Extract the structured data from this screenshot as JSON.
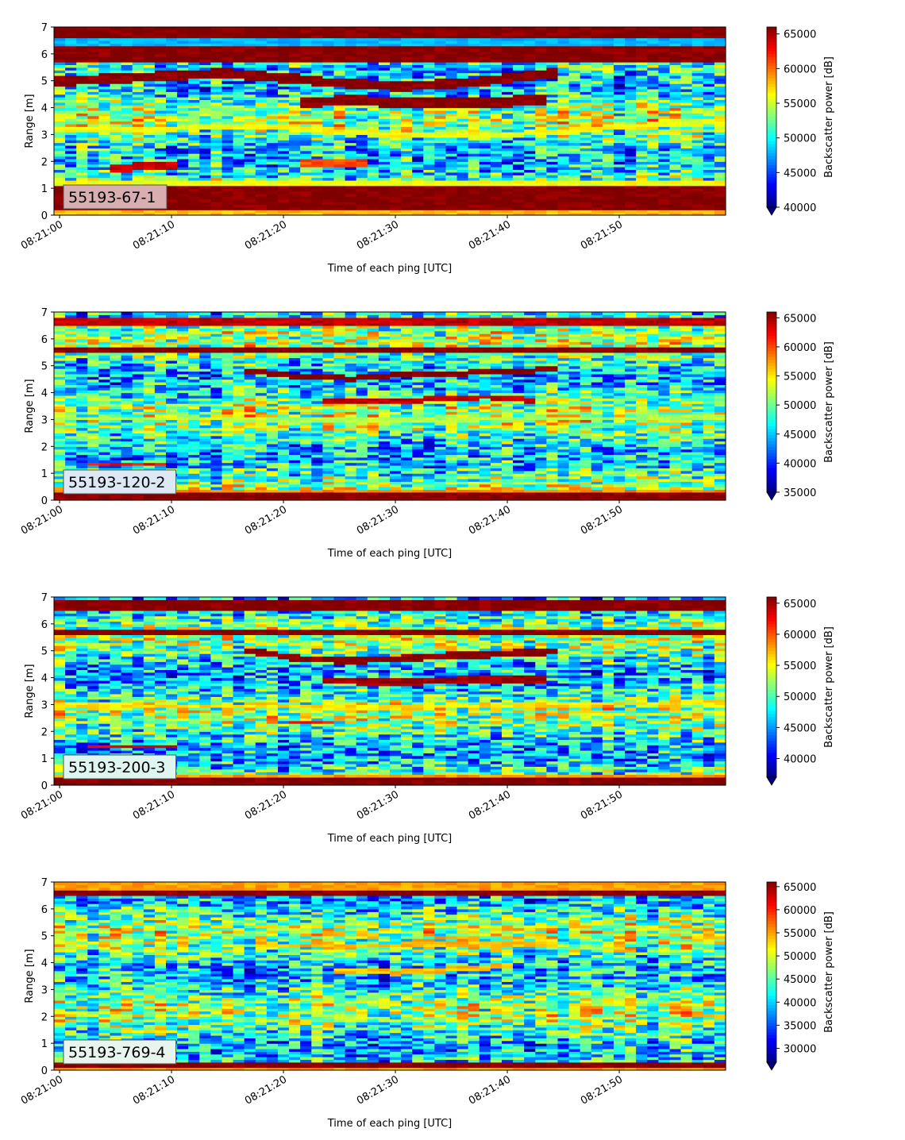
{
  "chart_data": [
    {
      "type": "heatmap",
      "panel_label": "55193-67-1",
      "label_box_color": "#d9aeb0",
      "xlabel": "Time of each ping [UTC]",
      "ylabel": "Range [m]",
      "xticks": [
        "08:21:00",
        "08:21:10",
        "08:21:20",
        "08:21:30",
        "08:21:40",
        "08:21:50"
      ],
      "x_range_seconds": [
        -0.5,
        59.5
      ],
      "ylim": [
        0,
        7
      ],
      "yticks": [
        0,
        1,
        2,
        3,
        4,
        5,
        6,
        7
      ],
      "colorbar": {
        "label": "Backscatter power [dB]",
        "vmin": 40000,
        "vmax": 66000,
        "ticks": [
          40000,
          45000,
          50000,
          55000,
          60000,
          65000
        ],
        "colormap": "jet",
        "extend": "min"
      },
      "layers": [
        {
          "range": [
            0.0,
            0.25
          ],
          "value": 58000
        },
        {
          "range": [
            0.25,
            1.15
          ],
          "value": 66000
        },
        {
          "range": [
            1.15,
            1.35
          ],
          "value": 56000
        },
        {
          "range": [
            5.7,
            6.3
          ],
          "value": 66000
        },
        {
          "range": [
            6.3,
            6.6
          ],
          "value": 48000
        },
        {
          "range": [
            6.6,
            7.0
          ],
          "value": 66000
        }
      ],
      "features": [
        {
          "t": [
            0,
            15,
            23,
            30,
            38,
            44
          ],
          "r": [
            5.0,
            5.3,
            5.0,
            4.8,
            5.0,
            5.3
          ],
          "value": 66000,
          "thickness": 0.35
        },
        {
          "t": [
            22,
            26,
            30,
            38,
            43
          ],
          "r": [
            4.2,
            4.3,
            4.2,
            4.2,
            4.3
          ],
          "value": 66000,
          "thickness": 0.4
        },
        {
          "t": [
            0,
            20,
            30,
            40,
            50,
            59
          ],
          "r": [
            3.2,
            3.3,
            3.0,
            3.0,
            3.3,
            3.5
          ],
          "value": 56000,
          "thickness": 0.2
        },
        {
          "t": [
            5,
            8,
            10
          ],
          "r": [
            1.75,
            1.85,
            1.85
          ],
          "value": 64000,
          "thickness": 0.3
        },
        {
          "t": [
            22,
            27
          ],
          "r": [
            1.95,
            1.95
          ],
          "value": 61000,
          "thickness": 0.25
        }
      ]
    },
    {
      "type": "heatmap",
      "panel_label": "55193-120-2",
      "label_box_color": "#dde8f5",
      "xlabel": "Time of each ping [UTC]",
      "ylabel": "Range [m]",
      "xticks": [
        "08:21:00",
        "08:21:10",
        "08:21:20",
        "08:21:30",
        "08:21:40",
        "08:21:50"
      ],
      "x_range_seconds": [
        -0.5,
        59.5
      ],
      "ylim": [
        0,
        7
      ],
      "yticks": [
        0,
        1,
        2,
        3,
        4,
        5,
        6,
        7
      ],
      "colorbar": {
        "label": "Backscatter power [dB]",
        "vmin": 35000,
        "vmax": 66000,
        "ticks": [
          35000,
          40000,
          45000,
          50000,
          55000,
          60000,
          65000
        ],
        "colormap": "jet",
        "extend": "min"
      },
      "layers": [
        {
          "range": [
            0.0,
            0.3
          ],
          "value": 66000
        },
        {
          "range": [
            0.3,
            0.4
          ],
          "value": 58000
        },
        {
          "range": [
            5.5,
            5.7
          ],
          "value": 66000
        },
        {
          "range": [
            6.5,
            6.8
          ],
          "value": 64000
        }
      ],
      "features": [
        {
          "t": [
            17,
            22,
            26,
            32,
            40,
            44
          ],
          "r": [
            4.8,
            4.6,
            4.55,
            4.7,
            4.8,
            4.9
          ],
          "value": 66000,
          "thickness": 0.2
        },
        {
          "t": [
            24,
            30,
            38,
            42
          ],
          "r": [
            3.7,
            3.7,
            3.85,
            3.75
          ],
          "value": 64000,
          "thickness": 0.2
        },
        {
          "t": [
            0,
            30,
            59
          ],
          "r": [
            3.05,
            3.0,
            3.1
          ],
          "value": 52000,
          "thickness": 0.15
        },
        {
          "t": [
            3,
            9
          ],
          "r": [
            1.35,
            1.35
          ],
          "value": 62000,
          "thickness": 0.12
        }
      ]
    },
    {
      "type": "heatmap",
      "panel_label": "55193-200-3",
      "label_box_color": "#dff5f0",
      "xlabel": "Time of each ping [UTC]",
      "ylabel": "Range [m]",
      "xticks": [
        "08:21:00",
        "08:21:10",
        "08:21:20",
        "08:21:30",
        "08:21:40",
        "08:21:50"
      ],
      "x_range_seconds": [
        -0.5,
        59.5
      ],
      "ylim": [
        0,
        7
      ],
      "yticks": [
        0,
        1,
        2,
        3,
        4,
        5,
        6,
        7
      ],
      "colorbar": {
        "label": "Backscatter power [dB]",
        "vmin": 37000,
        "vmax": 66000,
        "ticks": [
          40000,
          45000,
          50000,
          55000,
          60000,
          65000
        ],
        "colormap": "jet",
        "extend": "min"
      },
      "layers": [
        {
          "range": [
            0.0,
            0.3
          ],
          "value": 66000
        },
        {
          "range": [
            0.3,
            0.45
          ],
          "value": 58000
        },
        {
          "range": [
            5.6,
            5.85
          ],
          "value": 66000
        },
        {
          "range": [
            6.5,
            6.9
          ],
          "value": 66000
        }
      ],
      "features": [
        {
          "t": [
            17,
            22,
            27,
            33,
            40,
            44
          ],
          "r": [
            5.0,
            4.7,
            4.65,
            4.8,
            4.9,
            5.0
          ],
          "value": 66000,
          "thickness": 0.25
        },
        {
          "t": [
            24,
            30,
            38,
            43
          ],
          "r": [
            3.9,
            3.85,
            3.95,
            3.95
          ],
          "value": 65000,
          "thickness": 0.25
        },
        {
          "t": [
            0,
            30,
            59
          ],
          "r": [
            3.0,
            2.9,
            3.1
          ],
          "value": 56000,
          "thickness": 0.15
        },
        {
          "t": [
            21,
            24
          ],
          "r": [
            2.35,
            2.35
          ],
          "value": 62000,
          "thickness": 0.15
        },
        {
          "t": [
            3,
            10
          ],
          "r": [
            1.45,
            1.45
          ],
          "value": 63000,
          "thickness": 0.15
        }
      ]
    },
    {
      "type": "heatmap",
      "panel_label": "55193-769-4",
      "label_box_color": "#e8f5ee",
      "xlabel": "Time of each ping [UTC]",
      "ylabel": "Range [m]",
      "xticks": [
        "08:21:00",
        "08:21:10",
        "08:21:20",
        "08:21:30",
        "08:21:40",
        "08:21:50"
      ],
      "x_range_seconds": [
        -0.5,
        59.5
      ],
      "ylim": [
        0,
        7
      ],
      "yticks": [
        0,
        1,
        2,
        3,
        4,
        5,
        6,
        7
      ],
      "colorbar": {
        "label": "Backscatter power [dB]",
        "vmin": 27000,
        "vmax": 66000,
        "ticks": [
          30000,
          35000,
          40000,
          45000,
          50000,
          55000,
          60000,
          65000
        ],
        "colormap": "jet",
        "extend": "min"
      },
      "layers": [
        {
          "range": [
            0.0,
            0.12
          ],
          "value": 55000
        },
        {
          "range": [
            0.12,
            0.35
          ],
          "value": 66000
        },
        {
          "range": [
            6.5,
            6.75
          ],
          "value": 66000
        },
        {
          "range": [
            6.75,
            7.0
          ],
          "value": 55000
        }
      ],
      "features": [
        {
          "t": [
            18,
            25,
            32,
            40,
            44
          ],
          "r": [
            4.7,
            4.6,
            4.7,
            4.7,
            4.7
          ],
          "value": 54000,
          "thickness": 0.15
        },
        {
          "t": [
            25,
            30,
            36,
            40
          ],
          "r": [
            3.7,
            3.65,
            3.8,
            3.9
          ],
          "value": 54000,
          "thickness": 0.2
        },
        {
          "t": [
            6,
            10
          ],
          "r": [
            1.45,
            1.45
          ],
          "value": 52000,
          "thickness": 0.12
        }
      ]
    }
  ]
}
